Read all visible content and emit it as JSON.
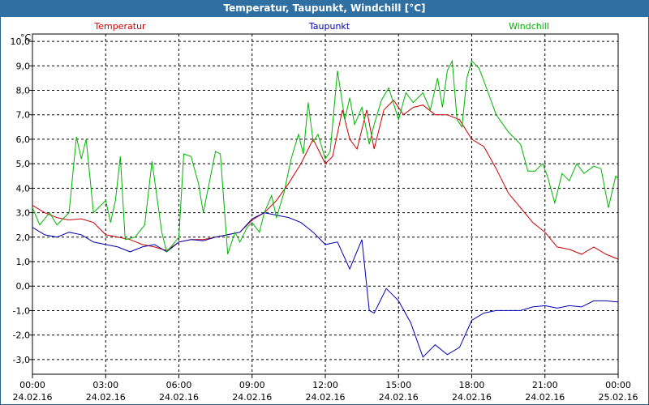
{
  "window": {
    "title": "Temperatur, Taupunkt, Windchill [°C]"
  },
  "chart_data": {
    "type": "line",
    "title": "Temperatur, Taupunkt, Windchill [°C]",
    "ylabel": "°C",
    "ylim": [
      -3.6,
      10.3
    ],
    "xlim": [
      0,
      24
    ],
    "grid": true,
    "y_ticks": [
      "10,0",
      "9,0",
      "8,0",
      "7,0",
      "6,0",
      "5,0",
      "4,0",
      "3,0",
      "2,0",
      "1,0",
      "0,0",
      "-1,0",
      "-2,0",
      "-3,0"
    ],
    "y_tick_values": [
      10,
      9,
      8,
      7,
      6,
      5,
      4,
      3,
      2,
      1,
      0,
      -1,
      -2,
      -3
    ],
    "x_ticks": [
      {
        "hour": 0,
        "time": "00:00",
        "date": "24.02.16"
      },
      {
        "hour": 3,
        "time": "03:00",
        "date": "24.02.16"
      },
      {
        "hour": 6,
        "time": "06:00",
        "date": "24.02.16"
      },
      {
        "hour": 9,
        "time": "09:00",
        "date": "24.02.16"
      },
      {
        "hour": 12,
        "time": "12:00",
        "date": "24.02.16"
      },
      {
        "hour": 15,
        "time": "15:00",
        "date": "24.02.16"
      },
      {
        "hour": 18,
        "time": "18:00",
        "date": "24.02.16"
      },
      {
        "hour": 21,
        "time": "21:00",
        "date": "24.02.16"
      },
      {
        "hour": 24,
        "time": "00:00",
        "date": "25.02.16"
      }
    ],
    "series": [
      {
        "name": "Temperatur",
        "color": "#cc0000",
        "points": [
          [
            0,
            3.3
          ],
          [
            0.5,
            3.0
          ],
          [
            1,
            2.8
          ],
          [
            1.5,
            2.7
          ],
          [
            2,
            2.75
          ],
          [
            2.5,
            2.6
          ],
          [
            3,
            2.1
          ],
          [
            3.5,
            2.0
          ],
          [
            4,
            1.9
          ],
          [
            4.5,
            1.7
          ],
          [
            5,
            1.6
          ],
          [
            5.5,
            1.45
          ],
          [
            6,
            1.8
          ],
          [
            6.5,
            1.9
          ],
          [
            7,
            1.9
          ],
          [
            7.5,
            2.0
          ],
          [
            8,
            2.1
          ],
          [
            8.5,
            2.2
          ],
          [
            9,
            2.7
          ],
          [
            9.5,
            3.0
          ],
          [
            10,
            3.5
          ],
          [
            10.5,
            4.2
          ],
          [
            11,
            5.0
          ],
          [
            11.5,
            6.0
          ],
          [
            12,
            5.0
          ],
          [
            12.3,
            5.3
          ],
          [
            12.7,
            7.2
          ],
          [
            13,
            6.0
          ],
          [
            13.3,
            5.6
          ],
          [
            13.7,
            7.2
          ],
          [
            14,
            5.6
          ],
          [
            14.4,
            7.2
          ],
          [
            14.8,
            7.6
          ],
          [
            15.2,
            7.0
          ],
          [
            15.6,
            7.3
          ],
          [
            16,
            7.4
          ],
          [
            16.5,
            7.0
          ],
          [
            17,
            7.0
          ],
          [
            17.5,
            6.8
          ],
          [
            18,
            6.0
          ],
          [
            18.5,
            5.7
          ],
          [
            19,
            4.8
          ],
          [
            19.5,
            3.8
          ],
          [
            20,
            3.2
          ],
          [
            20.5,
            2.6
          ],
          [
            21,
            2.2
          ],
          [
            21.5,
            1.6
          ],
          [
            22,
            1.5
          ],
          [
            22.5,
            1.3
          ],
          [
            23,
            1.6
          ],
          [
            23.5,
            1.3
          ],
          [
            24,
            1.1
          ]
        ]
      },
      {
        "name": "Taupunkt",
        "color": "#0000b4",
        "points": [
          [
            0,
            2.4
          ],
          [
            0.5,
            2.1
          ],
          [
            1,
            2.0
          ],
          [
            1.5,
            2.2
          ],
          [
            2,
            2.1
          ],
          [
            2.5,
            1.8
          ],
          [
            3,
            1.7
          ],
          [
            3.5,
            1.6
          ],
          [
            4,
            1.4
          ],
          [
            4.5,
            1.6
          ],
          [
            5,
            1.7
          ],
          [
            5.5,
            1.4
          ],
          [
            6,
            1.8
          ],
          [
            6.5,
            1.9
          ],
          [
            7,
            1.85
          ],
          [
            7.5,
            2.0
          ],
          [
            8,
            2.1
          ],
          [
            8.5,
            2.2
          ],
          [
            9,
            2.75
          ],
          [
            9.5,
            3.0
          ],
          [
            10,
            2.9
          ],
          [
            10.5,
            2.8
          ],
          [
            11,
            2.6
          ],
          [
            11.5,
            2.2
          ],
          [
            12,
            1.7
          ],
          [
            12.5,
            1.8
          ],
          [
            13,
            0.7
          ],
          [
            13.5,
            1.9
          ],
          [
            13.8,
            -1.0
          ],
          [
            14,
            -1.1
          ],
          [
            14.5,
            -0.1
          ],
          [
            15,
            -0.6
          ],
          [
            15.5,
            -1.5
          ],
          [
            16,
            -2.9
          ],
          [
            16.5,
            -2.4
          ],
          [
            17,
            -2.8
          ],
          [
            17.5,
            -2.5
          ],
          [
            18,
            -1.4
          ],
          [
            18.5,
            -1.1
          ],
          [
            19,
            -1.0
          ],
          [
            20,
            -1.0
          ],
          [
            20.5,
            -0.85
          ],
          [
            21,
            -0.8
          ],
          [
            21.5,
            -0.9
          ],
          [
            22,
            -0.8
          ],
          [
            22.5,
            -0.85
          ],
          [
            23,
            -0.6
          ],
          [
            23.5,
            -0.6
          ],
          [
            24,
            -0.65
          ]
        ]
      },
      {
        "name": "Windchill",
        "color": "#00b400",
        "points": [
          [
            0,
            3.2
          ],
          [
            0.3,
            2.5
          ],
          [
            0.7,
            3.0
          ],
          [
            1,
            2.5
          ],
          [
            1.5,
            3.0
          ],
          [
            1.8,
            6.1
          ],
          [
            2,
            5.2
          ],
          [
            2.2,
            6.0
          ],
          [
            2.5,
            3.0
          ],
          [
            3,
            3.5
          ],
          [
            3.2,
            2.6
          ],
          [
            3.4,
            3.5
          ],
          [
            3.6,
            5.3
          ],
          [
            3.8,
            1.9
          ],
          [
            4.2,
            2.0
          ],
          [
            4.6,
            2.5
          ],
          [
            4.9,
            5.1
          ],
          [
            5.3,
            2.2
          ],
          [
            5.5,
            1.4
          ],
          [
            6,
            2.0
          ],
          [
            6.2,
            5.4
          ],
          [
            6.5,
            5.3
          ],
          [
            6.8,
            4.2
          ],
          [
            7,
            3.0
          ],
          [
            7.3,
            4.5
          ],
          [
            7.5,
            5.5
          ],
          [
            7.7,
            5.4
          ],
          [
            8,
            1.3
          ],
          [
            8.3,
            2.2
          ],
          [
            8.5,
            1.8
          ],
          [
            8.8,
            2.4
          ],
          [
            9,
            2.6
          ],
          [
            9.3,
            2.2
          ],
          [
            9.5,
            3.0
          ],
          [
            9.8,
            3.7
          ],
          [
            10,
            2.8
          ],
          [
            10.3,
            3.8
          ],
          [
            10.6,
            5.2
          ],
          [
            10.9,
            6.2
          ],
          [
            11.1,
            5.4
          ],
          [
            11.3,
            7.5
          ],
          [
            11.5,
            5.9
          ],
          [
            11.7,
            6.2
          ],
          [
            12,
            5.2
          ],
          [
            12.2,
            5.5
          ],
          [
            12.5,
            8.8
          ],
          [
            12.8,
            6.8
          ],
          [
            13,
            7.7
          ],
          [
            13.2,
            6.6
          ],
          [
            13.5,
            7.3
          ],
          [
            13.8,
            5.8
          ],
          [
            14,
            6.6
          ],
          [
            14.3,
            7.6
          ],
          [
            14.6,
            8.1
          ],
          [
            15,
            6.8
          ],
          [
            15.3,
            7.9
          ],
          [
            15.6,
            7.5
          ],
          [
            16,
            7.9
          ],
          [
            16.3,
            7.2
          ],
          [
            16.6,
            8.5
          ],
          [
            16.8,
            7.3
          ],
          [
            17,
            8.8
          ],
          [
            17.2,
            9.2
          ],
          [
            17.4,
            6.8
          ],
          [
            17.6,
            6.5
          ],
          [
            17.8,
            8.5
          ],
          [
            18,
            9.2
          ],
          [
            18.3,
            8.9
          ],
          [
            18.6,
            8.1
          ],
          [
            19,
            7.0
          ],
          [
            19.5,
            6.3
          ],
          [
            20,
            5.8
          ],
          [
            20.3,
            4.7
          ],
          [
            20.6,
            4.7
          ],
          [
            20.9,
            5.0
          ],
          [
            21.1,
            4.5
          ],
          [
            21.4,
            3.4
          ],
          [
            21.7,
            4.6
          ],
          [
            22,
            4.3
          ],
          [
            22.3,
            5.0
          ],
          [
            22.6,
            4.6
          ],
          [
            23,
            4.9
          ],
          [
            23.3,
            4.8
          ],
          [
            23.6,
            3.2
          ],
          [
            23.9,
            4.5
          ],
          [
            24,
            4.4
          ]
        ]
      }
    ]
  }
}
